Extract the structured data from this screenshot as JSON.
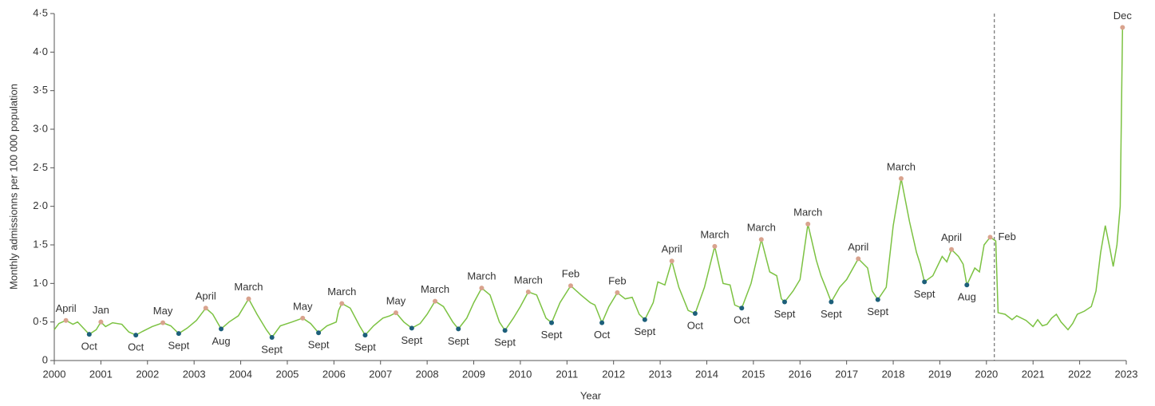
{
  "chart_data": {
    "type": "line",
    "x_label": "Year",
    "y_label": "Monthly admissionns per 100 000 population",
    "xlim": [
      2000,
      2023
    ],
    "xticks": [
      2000,
      2001,
      2002,
      2003,
      2004,
      2005,
      2006,
      2007,
      2008,
      2009,
      2010,
      2011,
      2012,
      2013,
      2014,
      2015,
      2016,
      2017,
      2018,
      2019,
      2020,
      2021,
      2022,
      2023
    ],
    "ylim": [
      0,
      4.5
    ],
    "yticks": [
      0,
      {
        "value": 0.5,
        "label": "0·5"
      },
      {
        "value": 1,
        "label": "1·0"
      },
      {
        "value": 1.5,
        "label": "1·5"
      },
      {
        "value": 2,
        "label": "2·0"
      },
      {
        "value": 2.5,
        "label": "2·5"
      },
      {
        "value": 3,
        "label": "3·0"
      },
      {
        "value": 3.5,
        "label": "3·5"
      },
      {
        "value": 4,
        "label": "4·0"
      },
      {
        "value": 4.5,
        "label": "4·5"
      }
    ],
    "vline": 2020.17,
    "series": [
      {
        "color": "#7cc242",
        "x": [
          2000.0,
          2000.1,
          2000.25,
          2000.4,
          2000.5,
          2000.75,
          2000.9,
          2001.0,
          2001.1,
          2001.25,
          2001.45,
          2001.6,
          2001.75,
          2001.9,
          2002.1,
          2002.33,
          2002.5,
          2002.67,
          2002.85,
          2003.05,
          2003.25,
          2003.4,
          2003.58,
          2003.75,
          2003.95,
          2004.17,
          2004.35,
          2004.55,
          2004.67,
          2004.85,
          2005.1,
          2005.33,
          2005.5,
          2005.67,
          2005.85,
          2006.05,
          2006.1,
          2006.17,
          2006.35,
          2006.55,
          2006.67,
          2006.85,
          2007.05,
          2007.2,
          2007.33,
          2007.5,
          2007.67,
          2007.85,
          2008.0,
          2008.17,
          2008.35,
          2008.55,
          2008.67,
          2008.85,
          2009.0,
          2009.17,
          2009.35,
          2009.55,
          2009.67,
          2009.85,
          2010.0,
          2010.17,
          2010.35,
          2010.55,
          2010.67,
          2010.85,
          2011.08,
          2011.3,
          2011.5,
          2011.6,
          2011.75,
          2011.9,
          2012.08,
          2012.25,
          2012.4,
          2012.55,
          2012.67,
          2012.85,
          2012.95,
          2013.1,
          2013.25,
          2013.4,
          2013.6,
          2013.75,
          2013.95,
          2014.17,
          2014.35,
          2014.5,
          2014.6,
          2014.75,
          2014.95,
          2015.17,
          2015.35,
          2015.5,
          2015.6,
          2015.67,
          2015.85,
          2016.0,
          2016.17,
          2016.35,
          2016.45,
          2016.55,
          2016.67,
          2016.85,
          2017.0,
          2017.25,
          2017.45,
          2017.55,
          2017.67,
          2017.85,
          2018.0,
          2018.17,
          2018.35,
          2018.5,
          2018.58,
          2018.67,
          2018.85,
          2019.05,
          2019.15,
          2019.25,
          2019.4,
          2019.5,
          2019.58,
          2019.75,
          2019.85,
          2019.95,
          2020.08,
          2020.2,
          2020.25,
          2020.4,
          2020.55,
          2020.65,
          2020.85,
          2021.0,
          2021.1,
          2021.2,
          2021.3,
          2021.4,
          2021.5,
          2021.6,
          2021.75,
          2021.85,
          2021.95,
          2022.1,
          2022.25,
          2022.35,
          2022.45,
          2022.55,
          2022.65,
          2022.72,
          2022.8,
          2022.87,
          2022.92
        ],
        "values": [
          0.4,
          0.48,
          0.52,
          0.47,
          0.5,
          0.34,
          0.4,
          0.5,
          0.44,
          0.49,
          0.47,
          0.37,
          0.33,
          0.38,
          0.44,
          0.49,
          0.45,
          0.35,
          0.42,
          0.52,
          0.68,
          0.6,
          0.41,
          0.5,
          0.58,
          0.8,
          0.6,
          0.4,
          0.3,
          0.45,
          0.5,
          0.55,
          0.48,
          0.36,
          0.45,
          0.5,
          0.65,
          0.74,
          0.68,
          0.45,
          0.33,
          0.45,
          0.55,
          0.58,
          0.62,
          0.5,
          0.42,
          0.48,
          0.6,
          0.77,
          0.7,
          0.5,
          0.41,
          0.55,
          0.75,
          0.94,
          0.85,
          0.5,
          0.39,
          0.55,
          0.7,
          0.89,
          0.85,
          0.55,
          0.49,
          0.75,
          0.97,
          0.85,
          0.75,
          0.72,
          0.49,
          0.7,
          0.88,
          0.8,
          0.82,
          0.6,
          0.53,
          0.75,
          1.02,
          0.98,
          1.29,
          0.95,
          0.65,
          0.61,
          0.95,
          1.48,
          1.0,
          0.98,
          0.72,
          0.68,
          1.0,
          1.57,
          1.15,
          1.1,
          0.8,
          0.76,
          0.9,
          1.05,
          1.77,
          1.3,
          1.1,
          0.95,
          0.76,
          0.95,
          1.05,
          1.32,
          1.2,
          0.9,
          0.79,
          0.95,
          1.75,
          2.36,
          1.8,
          1.4,
          1.25,
          1.02,
          1.1,
          1.35,
          1.28,
          1.44,
          1.35,
          1.25,
          0.98,
          1.2,
          1.15,
          1.5,
          1.6,
          1.55,
          0.62,
          0.6,
          0.53,
          0.58,
          0.52,
          0.44,
          0.53,
          0.45,
          0.47,
          0.55,
          0.6,
          0.5,
          0.4,
          0.48,
          0.6,
          0.64,
          0.7,
          0.9,
          1.4,
          1.75,
          1.45,
          1.22,
          1.5,
          2.0,
          4.32
        ]
      }
    ],
    "annotations": [
      {
        "label": "April",
        "x": 2000.25,
        "y": 0.52,
        "color": "#d9a38e",
        "position": "above"
      },
      {
        "label": "Oct",
        "x": 2000.75,
        "y": 0.34,
        "color": "#1d5f7a",
        "position": "below"
      },
      {
        "label": "Jan",
        "x": 2001.0,
        "y": 0.5,
        "color": "#d9a38e",
        "position": "above"
      },
      {
        "label": "Oct",
        "x": 2001.75,
        "y": 0.33,
        "color": "#1d5f7a",
        "position": "below"
      },
      {
        "label": "May",
        "x": 2002.33,
        "y": 0.49,
        "color": "#d9a38e",
        "position": "above"
      },
      {
        "label": "Sept",
        "x": 2002.67,
        "y": 0.35,
        "color": "#1d5f7a",
        "position": "below"
      },
      {
        "label": "April",
        "x": 2003.25,
        "y": 0.68,
        "color": "#d9a38e",
        "position": "above"
      },
      {
        "label": "Aug",
        "x": 2003.58,
        "y": 0.41,
        "color": "#1d5f7a",
        "position": "below"
      },
      {
        "label": "March",
        "x": 2004.17,
        "y": 0.8,
        "color": "#d9a38e",
        "position": "above"
      },
      {
        "label": "Sept",
        "x": 2004.67,
        "y": 0.3,
        "color": "#1d5f7a",
        "position": "below"
      },
      {
        "label": "May",
        "x": 2005.33,
        "y": 0.55,
        "color": "#d9a38e",
        "position": "above"
      },
      {
        "label": "Sept",
        "x": 2005.67,
        "y": 0.36,
        "color": "#1d5f7a",
        "position": "below"
      },
      {
        "label": "March",
        "x": 2006.17,
        "y": 0.74,
        "color": "#d9a38e",
        "position": "above"
      },
      {
        "label": "Sept",
        "x": 2006.67,
        "y": 0.33,
        "color": "#1d5f7a",
        "position": "below"
      },
      {
        "label": "May",
        "x": 2007.33,
        "y": 0.62,
        "color": "#d9a38e",
        "position": "above"
      },
      {
        "label": "Sept",
        "x": 2007.67,
        "y": 0.42,
        "color": "#1d5f7a",
        "position": "below"
      },
      {
        "label": "March",
        "x": 2008.17,
        "y": 0.77,
        "color": "#d9a38e",
        "position": "above"
      },
      {
        "label": "Sept",
        "x": 2008.67,
        "y": 0.41,
        "color": "#1d5f7a",
        "position": "below"
      },
      {
        "label": "March",
        "x": 2009.17,
        "y": 0.94,
        "color": "#d9a38e",
        "position": "above"
      },
      {
        "label": "Sept",
        "x": 2009.67,
        "y": 0.39,
        "color": "#1d5f7a",
        "position": "below"
      },
      {
        "label": "March",
        "x": 2010.17,
        "y": 0.89,
        "color": "#d9a38e",
        "position": "above"
      },
      {
        "label": "Sept",
        "x": 2010.67,
        "y": 0.49,
        "color": "#1d5f7a",
        "position": "below"
      },
      {
        "label": "Feb",
        "x": 2011.08,
        "y": 0.97,
        "color": "#d9a38e",
        "position": "above"
      },
      {
        "label": "Oct",
        "x": 2011.75,
        "y": 0.49,
        "color": "#1d5f7a",
        "position": "below"
      },
      {
        "label": "Feb",
        "x": 2012.08,
        "y": 0.88,
        "color": "#d9a38e",
        "position": "above"
      },
      {
        "label": "Sept",
        "x": 2012.67,
        "y": 0.53,
        "color": "#1d5f7a",
        "position": "below"
      },
      {
        "label": "April",
        "x": 2013.25,
        "y": 1.29,
        "color": "#d9a38e",
        "position": "above"
      },
      {
        "label": "Oct",
        "x": 2013.75,
        "y": 0.61,
        "color": "#1d5f7a",
        "position": "below"
      },
      {
        "label": "March",
        "x": 2014.17,
        "y": 1.48,
        "color": "#d9a38e",
        "position": "above"
      },
      {
        "label": "Oct",
        "x": 2014.75,
        "y": 0.68,
        "color": "#1d5f7a",
        "position": "below"
      },
      {
        "label": "March",
        "x": 2015.17,
        "y": 1.57,
        "color": "#d9a38e",
        "position": "above"
      },
      {
        "label": "Sept",
        "x": 2015.67,
        "y": 0.76,
        "color": "#1d5f7a",
        "position": "below"
      },
      {
        "label": "March",
        "x": 2016.17,
        "y": 1.77,
        "color": "#d9a38e",
        "position": "above"
      },
      {
        "label": "Sept",
        "x": 2016.67,
        "y": 0.76,
        "color": "#1d5f7a",
        "position": "below"
      },
      {
        "label": "April",
        "x": 2017.25,
        "y": 1.32,
        "color": "#d9a38e",
        "position": "above"
      },
      {
        "label": "Sept",
        "x": 2017.67,
        "y": 0.79,
        "color": "#1d5f7a",
        "position": "below"
      },
      {
        "label": "March",
        "x": 2018.17,
        "y": 2.36,
        "color": "#d9a38e",
        "position": "above"
      },
      {
        "label": "Sept",
        "x": 2018.67,
        "y": 1.02,
        "color": "#1d5f7a",
        "position": "below"
      },
      {
        "label": "April",
        "x": 2019.25,
        "y": 1.44,
        "color": "#d9a38e",
        "position": "above"
      },
      {
        "label": "Aug",
        "x": 2019.58,
        "y": 0.98,
        "color": "#1d5f7a",
        "position": "below"
      },
      {
        "label": "Feb",
        "x": 2020.08,
        "y": 1.6,
        "color": "#d9a38e",
        "position": "right"
      },
      {
        "label": "Dec",
        "x": 2022.92,
        "y": 4.32,
        "color": "#d9a38e",
        "position": "above"
      }
    ]
  }
}
